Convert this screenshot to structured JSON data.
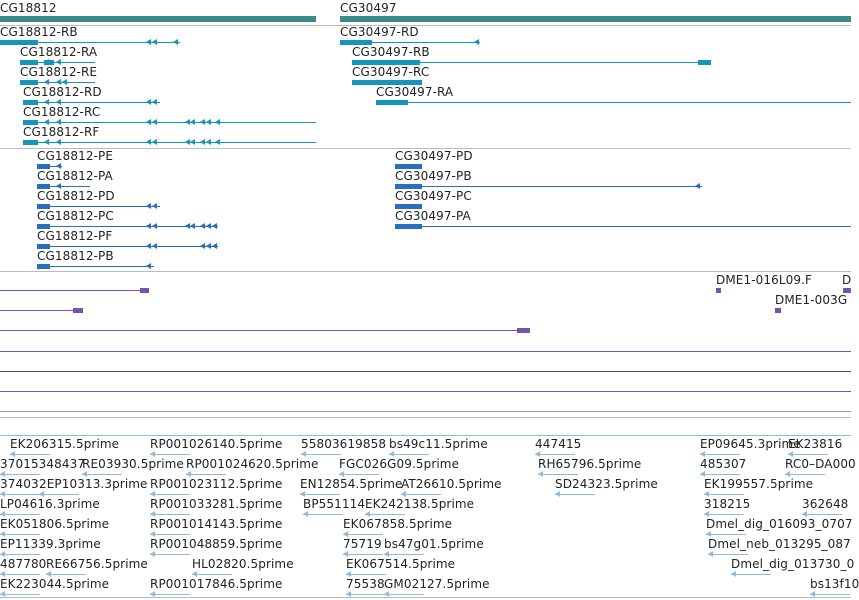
{
  "genes": {
    "gene_a": "CG18812",
    "gene_b": "CG30497"
  },
  "transcripts_top": {
    "rb": "CG18812-RB",
    "ra": "CG18812-RA",
    "re": "CG18812-RE",
    "rd": "CG18812-RD",
    "rc": "CG18812-RC",
    "rf": "CG18812-RF",
    "b_rd": "CG30497-RD",
    "b_rb": "CG30497-RB",
    "b_rc": "CG30497-RC",
    "b_ra": "CG30497-RA"
  },
  "proteins": {
    "pe": "CG18812-PE",
    "pa": "CG18812-PA",
    "pd": "CG18812-PD",
    "pc": "CG18812-PC",
    "pf": "CG18812-PF",
    "pb": "CG18812-PB",
    "b_pd": "CG30497-PD",
    "b_pb": "CG30497-PB",
    "b_pc": "CG30497-PC",
    "b_pa": "CG30497-PA"
  },
  "clones": {
    "c1": "DME1-016L09.F",
    "c2": "D",
    "c3": "DME1-003G"
  },
  "ests": {
    "r1": [
      "EK206315.5prime",
      "RP001026140.5prime",
      "55803619858",
      "bs49c11.5prime",
      "447415",
      "EP09645.3prime",
      "EK23816"
    ],
    "r2": [
      "37015348437",
      "RE03930.5prime",
      "RP001024620.5prime",
      "FGC026G09.5prime",
      "RH65796.5prime",
      "485307",
      "RC0–DA000"
    ],
    "r3": [
      "37403",
      "2EP10313.3prime",
      "RP001023112.5prime",
      "EN12854.5prime",
      "AT26610.5prime",
      "SD24323.5prime",
      "EK199557.5prime"
    ],
    "r4": [
      "LP04616.3prime",
      "RP001033281.5prime",
      "BP551114",
      "EK242138.5prime",
      "318215",
      "362648"
    ],
    "r5": [
      "EK051806.5prime",
      "RP001014143.5prime",
      "EK067858.5prime",
      "Dmel_dig_016093_0707"
    ],
    "r6": [
      "EP11339.3prime",
      "RP001048859.5prime",
      "75719",
      "bs47g01.5prime",
      "Dmel_neb_013295_087"
    ],
    "r7": [
      "487780",
      "RE66756.5prime",
      "HL02820.5prime",
      "EK067514.5prime",
      "Dmel_dig_013730_0"
    ],
    "r8": [
      "EK223044.5prime",
      "RP001017846.5prime",
      "75538",
      "GM02127.5prime",
      "bs13f10"
    ]
  },
  "colors": {
    "gene": "#3b8a8a",
    "transcript": "#1596b8",
    "protein": "#2a6ec0",
    "clone": "#7a52a8",
    "est": "#8ebbe0",
    "separator": "#bbbbbb"
  }
}
